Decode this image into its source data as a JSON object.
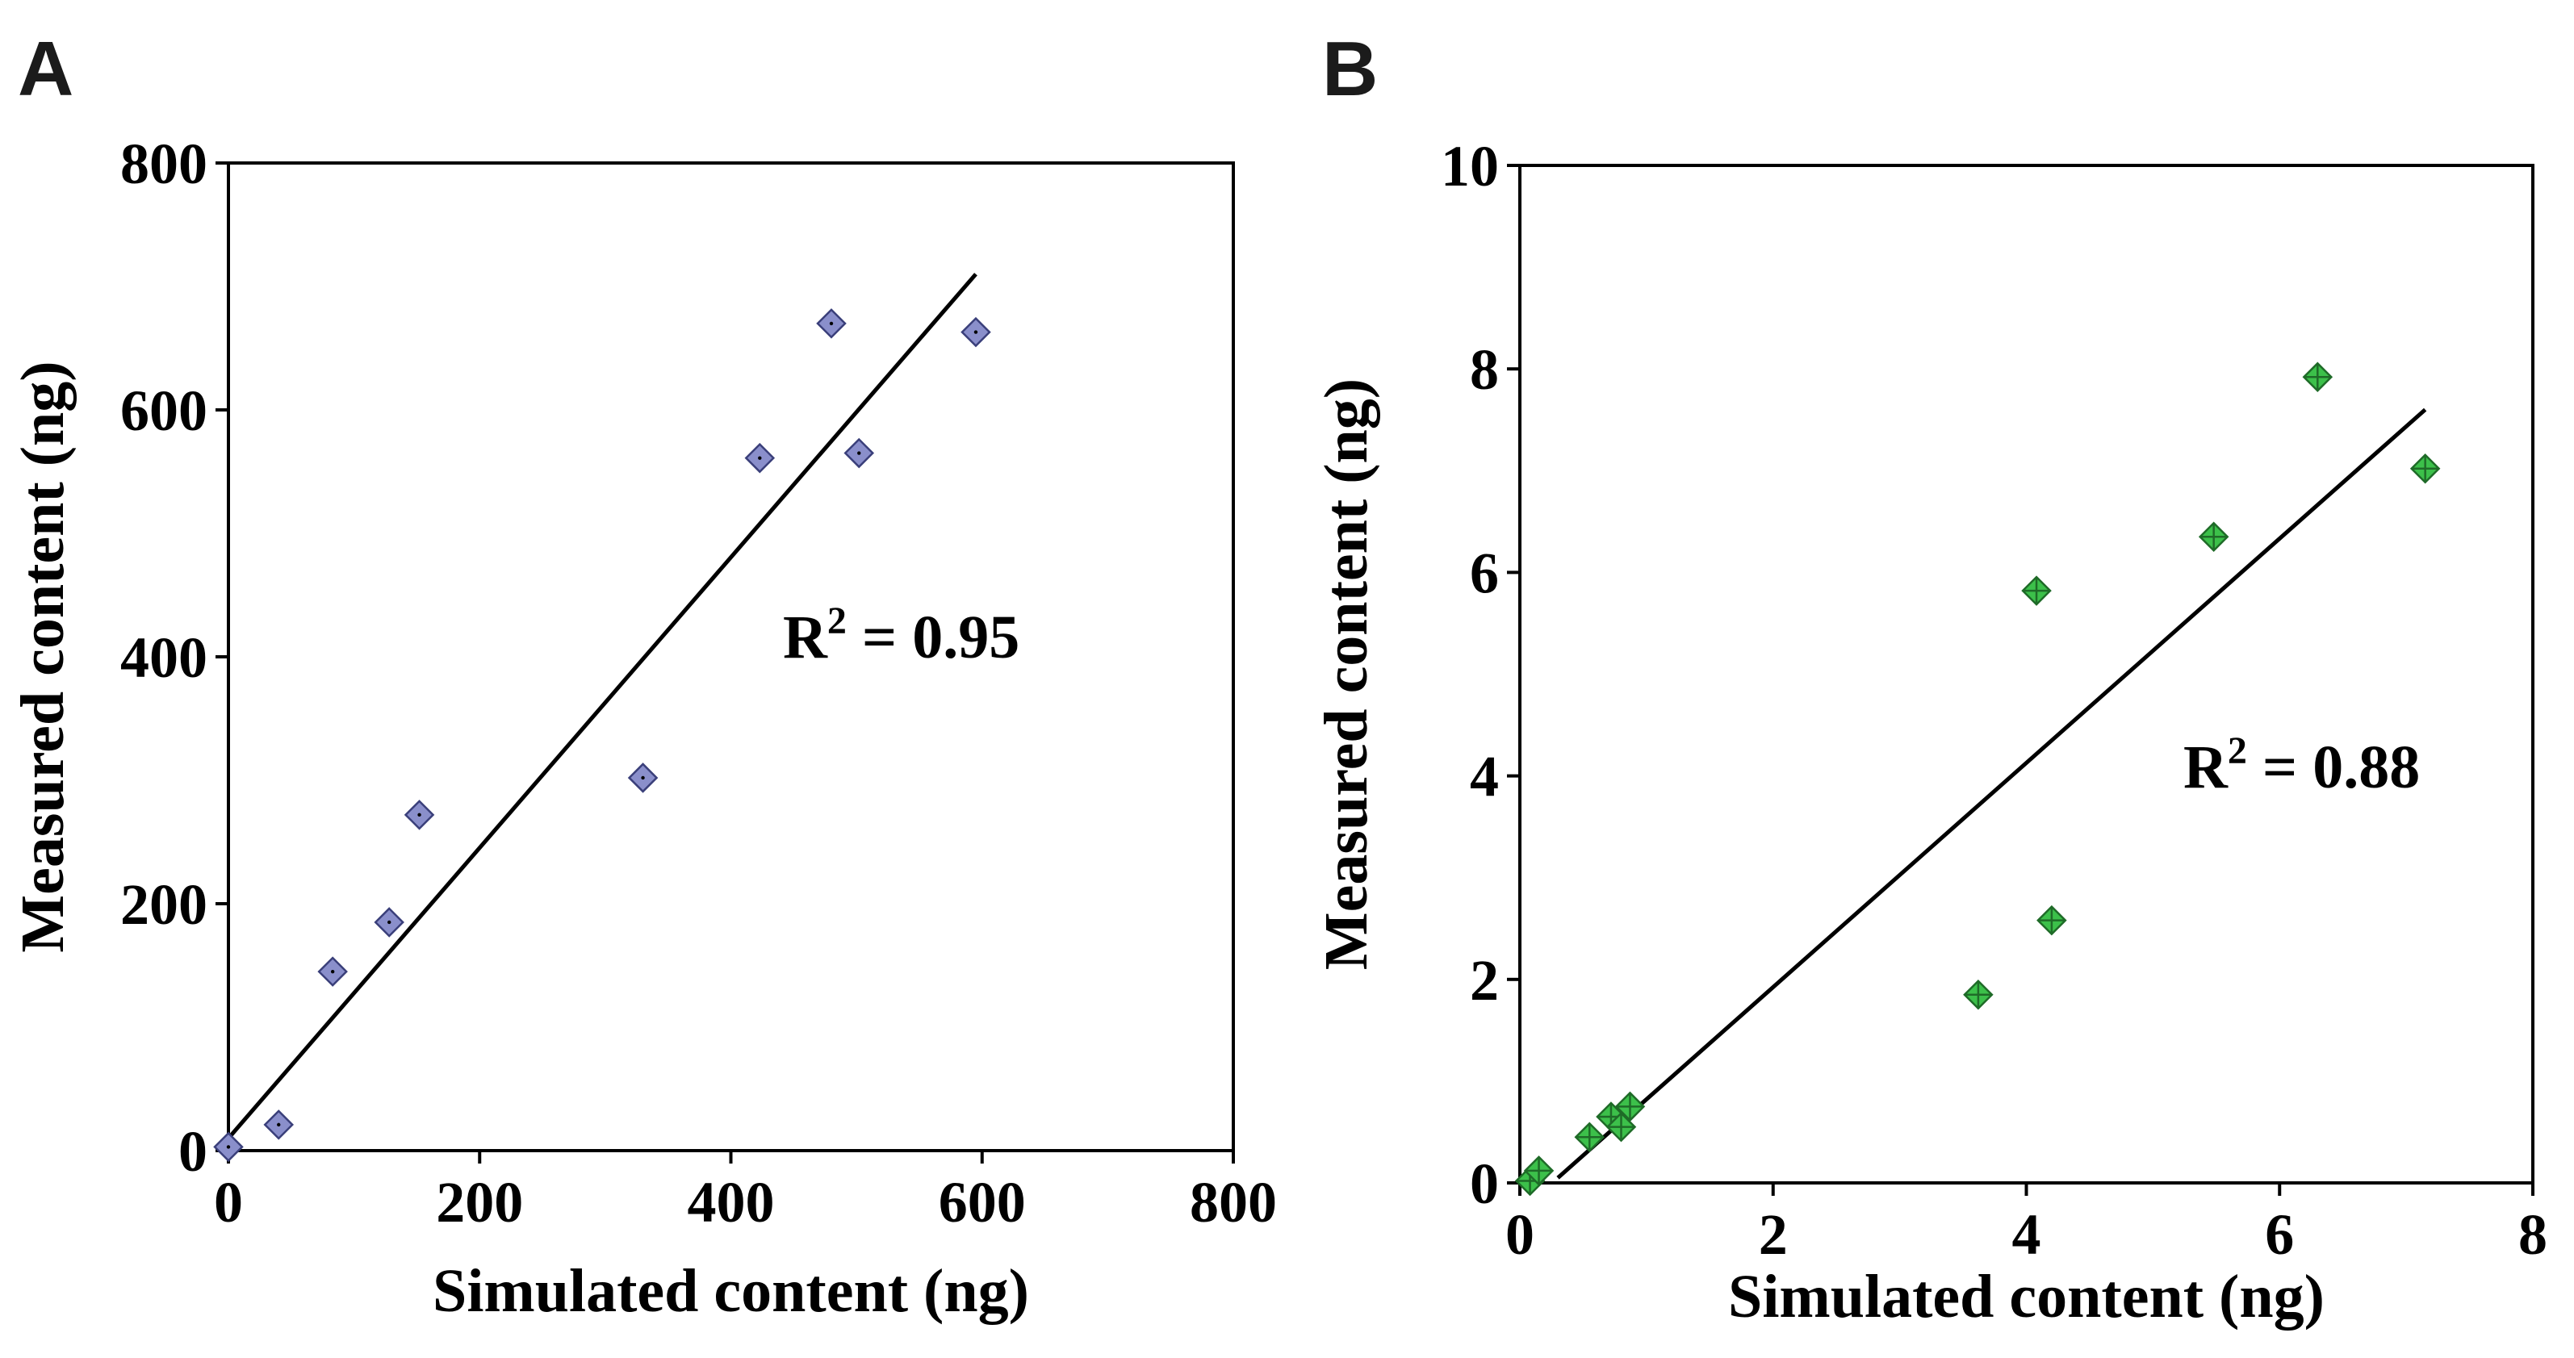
{
  "chart_data": [
    {
      "type": "scatter",
      "panel": "A",
      "title": "",
      "xlabel": "Simulated content (ng)",
      "ylabel": "Measured content (ng)",
      "xlim": [
        0,
        800
      ],
      "ylim": [
        0,
        800
      ],
      "xticks": [
        0,
        200,
        400,
        600,
        800
      ],
      "yticks": [
        0,
        200,
        400,
        600,
        800
      ],
      "grid": false,
      "marker": "diamond",
      "marker_color": "#8a8fcb",
      "marker_edge": "#3a3f7a",
      "points": [
        {
          "x": 0,
          "y": 3
        },
        {
          "x": 40,
          "y": 21
        },
        {
          "x": 83,
          "y": 145
        },
        {
          "x": 128,
          "y": 185
        },
        {
          "x": 152,
          "y": 272
        },
        {
          "x": 330,
          "y": 302
        },
        {
          "x": 423,
          "y": 561
        },
        {
          "x": 480,
          "y": 670
        },
        {
          "x": 502,
          "y": 565
        },
        {
          "x": 595,
          "y": 663
        }
      ],
      "fit_line": {
        "x": [
          0,
          595
        ],
        "y": [
          10,
          710
        ]
      },
      "annotation": {
        "prefix": "R",
        "superscript": "2",
        "suffix": " = 0.95",
        "x": 435,
        "y": 405
      }
    },
    {
      "type": "scatter",
      "panel": "B",
      "title": "",
      "xlabel": "Simulated content (ng)",
      "ylabel": "Measured content (ng)",
      "xlim": [
        0,
        8
      ],
      "ylim": [
        0,
        10
      ],
      "xticks": [
        0,
        2,
        4,
        6,
        8
      ],
      "yticks": [
        0,
        2,
        4,
        6,
        8,
        10
      ],
      "grid": false,
      "marker": "diamond-cross",
      "marker_color": "#3cc04a",
      "marker_edge": "#1f6b28",
      "points": [
        {
          "x": 0.08,
          "y": 0.02
        },
        {
          "x": 0.15,
          "y": 0.12
        },
        {
          "x": 0.55,
          "y": 0.45
        },
        {
          "x": 0.72,
          "y": 0.65
        },
        {
          "x": 0.8,
          "y": 0.55
        },
        {
          "x": 0.87,
          "y": 0.75
        },
        {
          "x": 3.62,
          "y": 1.85
        },
        {
          "x": 4.08,
          "y": 5.82
        },
        {
          "x": 4.2,
          "y": 2.58
        },
        {
          "x": 5.48,
          "y": 6.35
        },
        {
          "x": 6.3,
          "y": 7.92
        },
        {
          "x": 7.15,
          "y": 7.02
        }
      ],
      "fit_line": {
        "x": [
          0.3,
          7.15
        ],
        "y": [
          0.05,
          7.6
        ]
      },
      "annotation": {
        "prefix": "R",
        "superscript": "2",
        "suffix": " = 0.88",
        "x": 5.3,
        "y": 4.1
      }
    }
  ],
  "panels": [
    {
      "letter": "A"
    },
    {
      "letter": "B"
    }
  ]
}
